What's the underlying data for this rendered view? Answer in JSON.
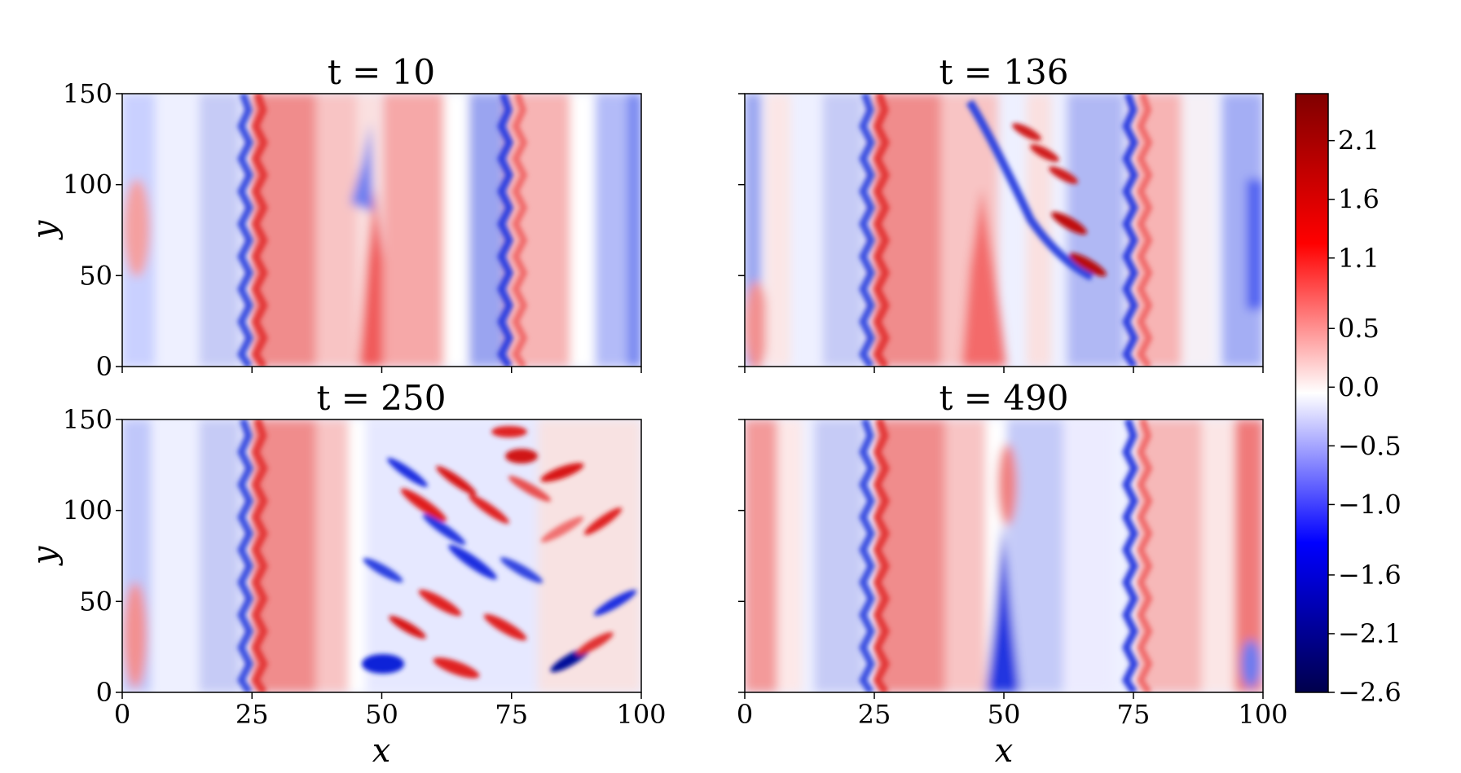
{
  "chart_data": {
    "type": "heatmap",
    "colormap": "seismic",
    "colors": {
      "min": "#00004c",
      "neg": "#0000ff",
      "zero": "#ffffff",
      "pos": "#ff0000",
      "max": "#800000"
    },
    "colorbar": {
      "vmin": -2.6,
      "vmax": 2.5,
      "ticks": [
        "2.1",
        "1.6",
        "1.1",
        "0.5",
        "0.0",
        "−0.5",
        "−1.0",
        "−1.6",
        "−2.1",
        "−2.6"
      ],
      "tick_values": [
        2.1,
        1.6,
        1.1,
        0.5,
        0.0,
        -0.5,
        -1.0,
        -1.6,
        -2.1,
        -2.6
      ]
    },
    "xlim": [
      0,
      100
    ],
    "ylim": [
      0,
      150
    ],
    "xticks": [
      "0",
      "25",
      "50",
      "75",
      "100"
    ],
    "yticks": [
      "0",
      "50",
      "100",
      "150"
    ],
    "xlabel": "x",
    "ylabel": "y",
    "panels": [
      {
        "title": "t = 10"
      },
      {
        "title": "t = 136"
      },
      {
        "title": "t = 250"
      },
      {
        "title": "t = 490"
      }
    ]
  }
}
